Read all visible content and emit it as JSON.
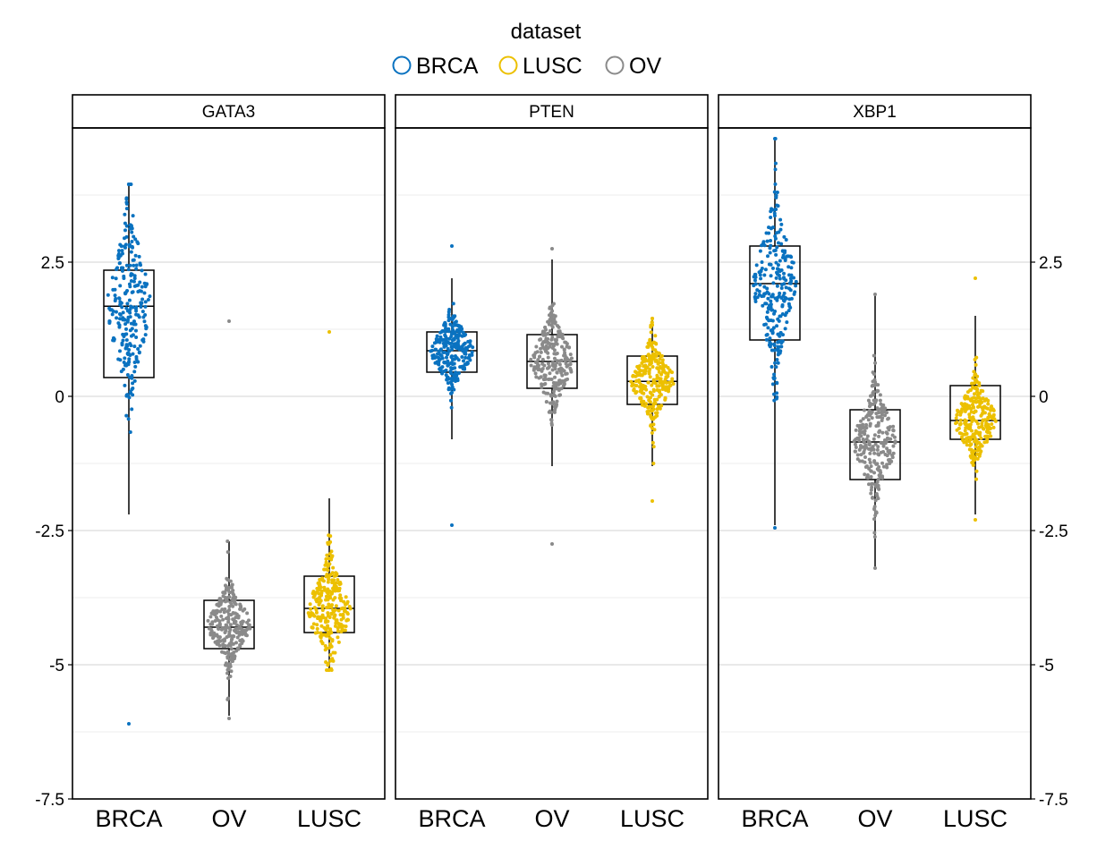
{
  "chart_data": {
    "type": "box",
    "legend": {
      "title": "dataset",
      "placement": "top",
      "entries": [
        {
          "name": "BRCA",
          "color": "#0a72c0"
        },
        {
          "name": "LUSC",
          "color": "#ecc000"
        },
        {
          "name": "OV",
          "color": "#8a8a8a"
        }
      ]
    },
    "y_axis": {
      "range": [
        -7.5,
        5
      ],
      "ticks": [
        2.5,
        0,
        -2.5,
        -5,
        -7.5
      ],
      "tick_labels": [
        "2.5",
        "0",
        "-2.5",
        "-5",
        "-7.5"
      ],
      "left_and_right": true,
      "grid": true
    },
    "categories": [
      "BRCA",
      "OV",
      "LUSC"
    ],
    "category_colors": {
      "BRCA": "#0a72c0",
      "OV": "#8a8a8a",
      "LUSC": "#ecc000"
    },
    "panels": [
      {
        "title": "GATA3",
        "groups": [
          {
            "category": "BRCA",
            "q1": 0.35,
            "median": 1.68,
            "q3": 2.35,
            "whisker_low": -2.2,
            "whisker_high": 3.95,
            "min": -6.1,
            "max": 3.95,
            "center": 1.7,
            "spread": 1.3
          },
          {
            "category": "OV",
            "q1": -4.7,
            "median": -4.3,
            "q3": -3.8,
            "whisker_low": -5.95,
            "whisker_high": -2.7,
            "min": -6.0,
            "max": 1.4,
            "center": -4.25,
            "spread": 0.55
          },
          {
            "category": "LUSC",
            "q1": -4.4,
            "median": -3.95,
            "q3": -3.35,
            "whisker_low": -5.1,
            "whisker_high": -1.9,
            "min": -5.1,
            "max": 1.2,
            "center": -4.0,
            "spread": 0.7
          }
        ]
      },
      {
        "title": "PTEN",
        "groups": [
          {
            "category": "BRCA",
            "q1": 0.45,
            "median": 0.85,
            "q3": 1.2,
            "whisker_low": -0.8,
            "whisker_high": 2.2,
            "min": -2.4,
            "max": 2.8,
            "center": 0.85,
            "spread": 0.5
          },
          {
            "category": "OV",
            "q1": 0.15,
            "median": 0.65,
            "q3": 1.15,
            "whisker_low": -1.3,
            "whisker_high": 2.55,
            "min": -2.75,
            "max": 2.75,
            "center": 0.65,
            "spread": 0.65
          },
          {
            "category": "LUSC",
            "q1": -0.15,
            "median": 0.28,
            "q3": 0.75,
            "whisker_low": -1.3,
            "whisker_high": 1.45,
            "min": -1.95,
            "max": 1.45,
            "center": 0.3,
            "spread": 0.55
          }
        ]
      },
      {
        "title": "XBP1",
        "groups": [
          {
            "category": "BRCA",
            "q1": 1.05,
            "median": 2.1,
            "q3": 2.8,
            "whisker_low": -2.4,
            "whisker_high": 4.8,
            "min": -2.45,
            "max": 4.8,
            "center": 2.1,
            "spread": 1.1
          },
          {
            "category": "OV",
            "q1": -1.55,
            "median": -0.85,
            "q3": -0.25,
            "whisker_low": -3.2,
            "whisker_high": 1.9,
            "min": -3.2,
            "max": 1.9,
            "center": -0.85,
            "spread": 0.75
          },
          {
            "category": "LUSC",
            "q1": -0.8,
            "median": -0.45,
            "q3": 0.2,
            "whisker_low": -2.2,
            "whisker_high": 1.5,
            "min": -2.3,
            "max": 2.2,
            "center": -0.45,
            "spread": 0.55
          }
        ]
      }
    ]
  }
}
